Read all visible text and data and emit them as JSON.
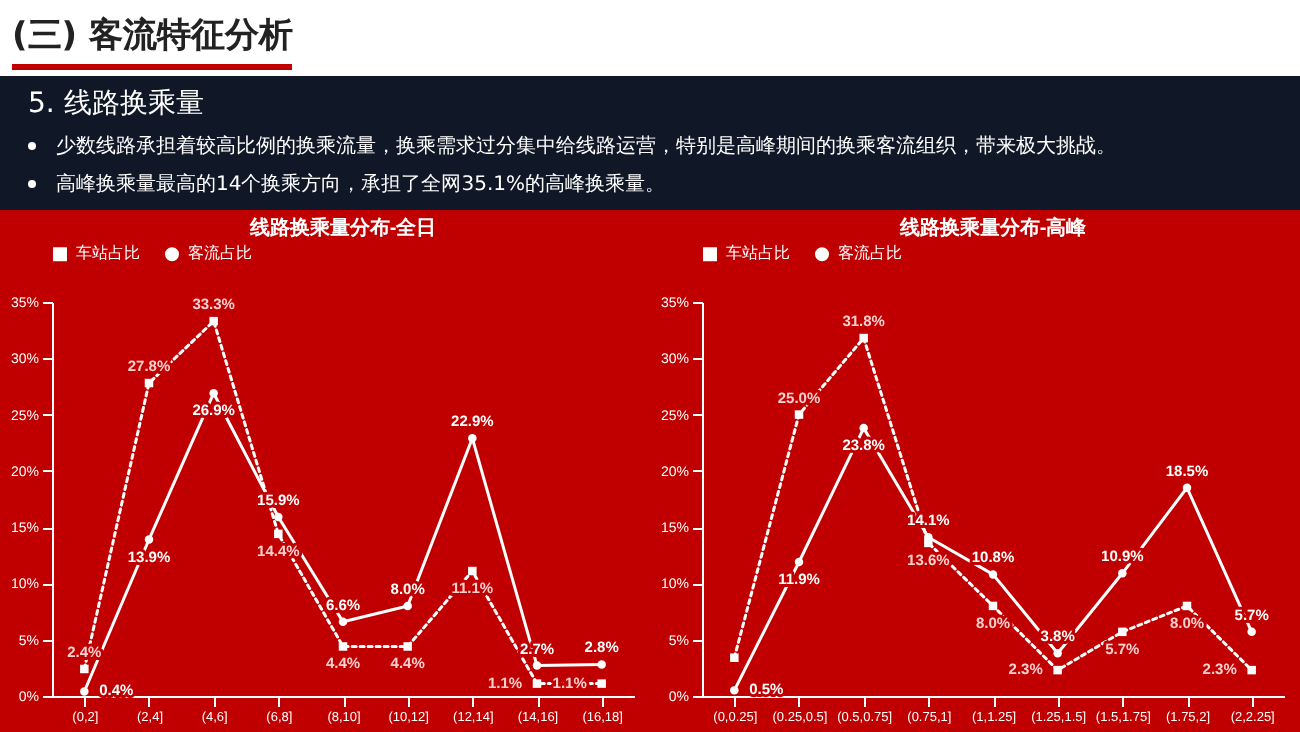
{
  "chart_data": [
    {
      "type": "other",
      "title": "(三) 客流特征分析",
      "subtitle": "5. 线路换乘量",
      "annotations": [
        "少数线路承担着较高比例的换乘流量，换乘需求过分集中给线路运营，特别是高峰期间的换乘客流组织，带来极大挑战。",
        "高峰换乘量最高的14个换乘方向，承担了全网35.1%的高峰换乘量。"
      ]
    },
    {
      "type": "line",
      "title": "线路换乘量分布-全日",
      "categories": [
        "(0,2]",
        "(2,4]",
        "(4,6]",
        "(6,8]",
        "(8,10]",
        "(10,12]",
        "(12,14]",
        "(14,16]",
        "(16,18]"
      ],
      "series": [
        {
          "name": "车站占比",
          "color": "#ffffff",
          "line_style": "dotted",
          "marker": "square",
          "values": [
            2.4,
            27.8,
            33.3,
            14.4,
            4.4,
            4.4,
            11.1,
            1.1,
            1.1
          ],
          "value_labels": [
            "2.4%",
            "27.8%",
            "33.3%",
            "14.4%",
            "4.4%",
            "4.4%",
            "11.1%",
            "1.1%",
            "1.1%"
          ]
        },
        {
          "name": "客流占比",
          "color": "#ffffff",
          "line_style": "solid",
          "marker": "circle",
          "values": [
            0.4,
            13.9,
            26.9,
            15.9,
            6.6,
            8.0,
            22.9,
            2.7,
            2.8
          ],
          "value_labels": [
            "0.4%",
            "13.9%",
            "26.9%",
            "15.9%",
            "6.6%",
            "8.0%",
            "22.9%",
            "2.7%",
            "2.8%"
          ]
        }
      ],
      "ylim": [
        0,
        35
      ],
      "yticks": [
        {
          "value": 0,
          "label": "0%"
        },
        {
          "value": 5,
          "label": "5%"
        },
        {
          "value": 10,
          "label": "10%"
        },
        {
          "value": 15,
          "label": "15%"
        },
        {
          "value": 20,
          "label": "20%"
        },
        {
          "value": 25,
          "label": "25%"
        },
        {
          "value": 30,
          "label": "30%"
        },
        {
          "value": 35,
          "label": "35%"
        }
      ],
      "legend": "top"
    },
    {
      "type": "line",
      "title": "线路换乘量分布-高峰",
      "categories": [
        "(0,0.25]",
        "(0.25,0.5]",
        "(0.5,0.75]",
        "(0.75,1]",
        "(1,1.25]",
        "(1.25,1.5]",
        "(1.5,1.75]",
        "(1.75,2]",
        "(2,2.25]"
      ],
      "series": [
        {
          "name": "车站占比",
          "color": "#ffffff",
          "line_style": "dotted",
          "marker": "square",
          "values": [
            3.4,
            25.0,
            31.8,
            13.6,
            8.0,
            2.3,
            5.7,
            8.0,
            2.3
          ],
          "value_labels": [
            null,
            "25.0%",
            "31.8%",
            "13.6%",
            "8.0%",
            "2.3%",
            "5.7%",
            "8.0%",
            "2.3%"
          ]
        },
        {
          "name": "客流占比",
          "color": "#ffffff",
          "line_style": "solid",
          "marker": "circle",
          "values": [
            0.5,
            11.9,
            23.8,
            14.1,
            10.8,
            3.8,
            10.9,
            18.5,
            5.7
          ],
          "value_labels": [
            "0.5%",
            "11.9%",
            "23.8%",
            "14.1%",
            "10.8%",
            "3.8%",
            "10.9%",
            "18.5%",
            "5.7%"
          ]
        }
      ],
      "ylim": [
        0,
        35
      ],
      "yticks": [
        {
          "value": 0,
          "label": "0%"
        },
        {
          "value": 5,
          "label": "5%"
        },
        {
          "value": 10,
          "label": "10%"
        },
        {
          "value": 15,
          "label": "15%"
        },
        {
          "value": 20,
          "label": "20%"
        },
        {
          "value": 25,
          "label": "25%"
        },
        {
          "value": 30,
          "label": "30%"
        },
        {
          "value": 35,
          "label": "35%"
        }
      ],
      "legend": "top"
    }
  ]
}
